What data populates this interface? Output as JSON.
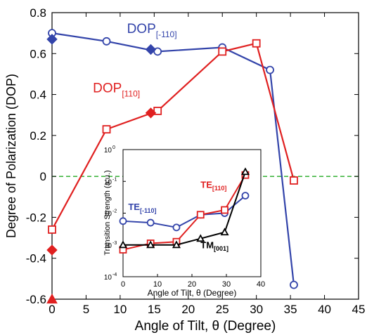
{
  "chart_data": [
    {
      "type": "line",
      "title": "",
      "xlabel": "Angle of Tilt, θ (Degree)",
      "ylabel": "Degree of Polarization (DOP)",
      "xlim": [
        0,
        45
      ],
      "ylim": [
        -0.6,
        0.8
      ],
      "xticks": [
        "0",
        "5",
        "10",
        "15",
        "20",
        "25",
        "30",
        "35",
        "40",
        "45"
      ],
      "xtick_values": [
        0,
        5,
        10,
        15,
        20,
        25,
        30,
        35,
        40,
        45
      ],
      "yticks": [
        "-0.6",
        "-0.4",
        "-0.2",
        "0",
        "0.2",
        "0.4",
        "0.6",
        "0.8"
      ],
      "ytick_values": [
        -0.6,
        -0.4,
        -0.2,
        0,
        0.2,
        0.4,
        0.6,
        0.8
      ],
      "grid": false,
      "reference_line": {
        "y": 0,
        "style": "dashed",
        "color": "#22aa22"
      },
      "series": [
        {
          "name": "DOP",
          "name_subscript": "[-110]",
          "color": "#3344aa",
          "marker": "circle",
          "x": [
            0,
            8,
            15.5,
            25,
            32,
            35.5
          ],
          "y": [
            0.7,
            0.66,
            0.61,
            0.63,
            0.52,
            -0.53
          ]
        },
        {
          "name": "DOP",
          "name_subscript": "[110]",
          "color": "#e02020",
          "marker": "square",
          "x": [
            0,
            8,
            15.5,
            25,
            30,
            35.5
          ],
          "y": [
            -0.26,
            0.23,
            0.32,
            0.61,
            0.65,
            -0.02
          ]
        }
      ],
      "extra_markers": [
        {
          "x": 0,
          "y": 0.67,
          "shape": "diamond",
          "color": "#3344aa"
        },
        {
          "x": 14.5,
          "y": 0.62,
          "shape": "diamond",
          "color": "#3344aa"
        },
        {
          "x": 0,
          "y": -0.36,
          "shape": "diamond",
          "color": "#e02020"
        },
        {
          "x": 14.5,
          "y": 0.31,
          "shape": "diamond",
          "color": "#e02020"
        },
        {
          "x": 0,
          "y": -0.6,
          "shape": "triangle",
          "color": "#e02020"
        }
      ],
      "annotations": [
        {
          "text": "DOP",
          "subscript": "[-110]",
          "color": "#3344aa",
          "x": 11,
          "y": 0.7
        },
        {
          "text": "DOP",
          "subscript": "[110]",
          "color": "#e02020",
          "x": 6,
          "y": 0.41
        }
      ]
    },
    {
      "type": "line",
      "title": "",
      "xlabel": "Angle of Tilt, θ (Degree)",
      "ylabel": "Transition Strength (a.u.)",
      "xlim": [
        0,
        40
      ],
      "ylim_log10": [
        -4,
        0
      ],
      "log_y": true,
      "xticks": [
        "0",
        "10",
        "20",
        "30",
        "40"
      ],
      "xtick_values": [
        0,
        10,
        20,
        30,
        40
      ],
      "yticks_base": [
        "10",
        "10",
        "10",
        "10",
        "10"
      ],
      "yticks_exp": [
        "-4",
        "-3",
        "-2",
        "-1",
        "0"
      ],
      "ytick_log_values": [
        -4,
        -3,
        -2,
        -1,
        0
      ],
      "series": [
        {
          "name": "TE",
          "name_subscript": "[-110]",
          "color": "#3344aa",
          "marker": "circle",
          "x": [
            0,
            8,
            15.5,
            22.5,
            29.5,
            35.5
          ],
          "y_log10": [
            -2.25,
            -2.3,
            -2.45,
            -2.05,
            -2.0,
            -1.45
          ]
        },
        {
          "name": "TE",
          "name_subscript": "[110]",
          "color": "#e02020",
          "marker": "square",
          "x": [
            0,
            8,
            15.5,
            22.5,
            29.5,
            35.5
          ],
          "y_log10": [
            -3.15,
            -2.95,
            -2.9,
            -2.05,
            -1.9,
            -0.8
          ]
        },
        {
          "name": "TM",
          "name_subscript": "[001]",
          "color": "#000000",
          "marker": "triangle",
          "x": [
            0,
            8,
            15.5,
            22.5,
            29.5,
            35.5
          ],
          "y_log10": [
            -3.0,
            -3.0,
            -3.0,
            -2.8,
            -2.6,
            -0.7
          ]
        }
      ],
      "annotations": [
        {
          "text": "TE",
          "subscript": "[-110]",
          "color": "#3344aa",
          "x": 1.5,
          "y_log10": -1.9
        },
        {
          "text": "TE",
          "subscript": "[110]",
          "color": "#e02020",
          "x": 22.5,
          "y_log10": -1.2
        },
        {
          "text": "TM",
          "subscript": "[001]",
          "color": "#000000",
          "x": 22.5,
          "y_log10": -3.1
        }
      ]
    }
  ]
}
